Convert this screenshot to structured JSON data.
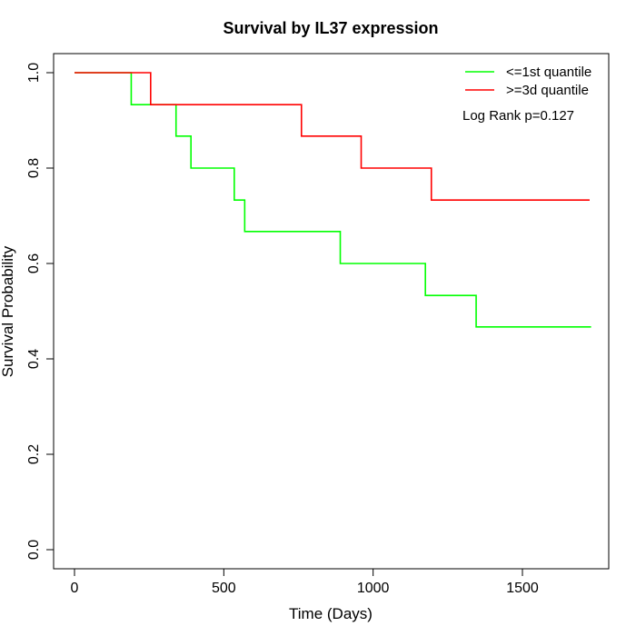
{
  "chart_data": {
    "type": "line",
    "title": "Survival by IL37 expression",
    "xlabel": "Time (Days)",
    "ylabel": "Survival Probability",
    "xlim": [
      0,
      1780
    ],
    "ylim": [
      0,
      1.0
    ],
    "x_ticks": [
      0,
      500,
      1000,
      1500
    ],
    "y_ticks": [
      0.0,
      0.2,
      0.4,
      0.6,
      0.8,
      1.0
    ],
    "x_tick_labels": [
      "0",
      "500",
      "1000",
      "1500"
    ],
    "y_tick_labels": [
      "0.0",
      "0.2",
      "0.4",
      "0.6",
      "0.8",
      "1.0"
    ],
    "legend_position": "top-right",
    "annotation": "Log Rank p=0.127",
    "grid": false,
    "series": [
      {
        "name": "<=1st quantile",
        "color": "#00ff00",
        "step": true,
        "points": [
          [
            0,
            1.0
          ],
          [
            190,
            0.933
          ],
          [
            340,
            0.867
          ],
          [
            390,
            0.8
          ],
          [
            535,
            0.733
          ],
          [
            570,
            0.667
          ],
          [
            890,
            0.6
          ],
          [
            1175,
            0.533
          ],
          [
            1345,
            0.467
          ],
          [
            1730,
            0.467
          ]
        ]
      },
      {
        "name": ">=3d quantile",
        "color": "#ff0000",
        "step": true,
        "points": [
          [
            0,
            1.0
          ],
          [
            255,
            0.933
          ],
          [
            760,
            0.867
          ],
          [
            960,
            0.8
          ],
          [
            1195,
            0.733
          ],
          [
            1725,
            0.733
          ]
        ]
      }
    ]
  }
}
